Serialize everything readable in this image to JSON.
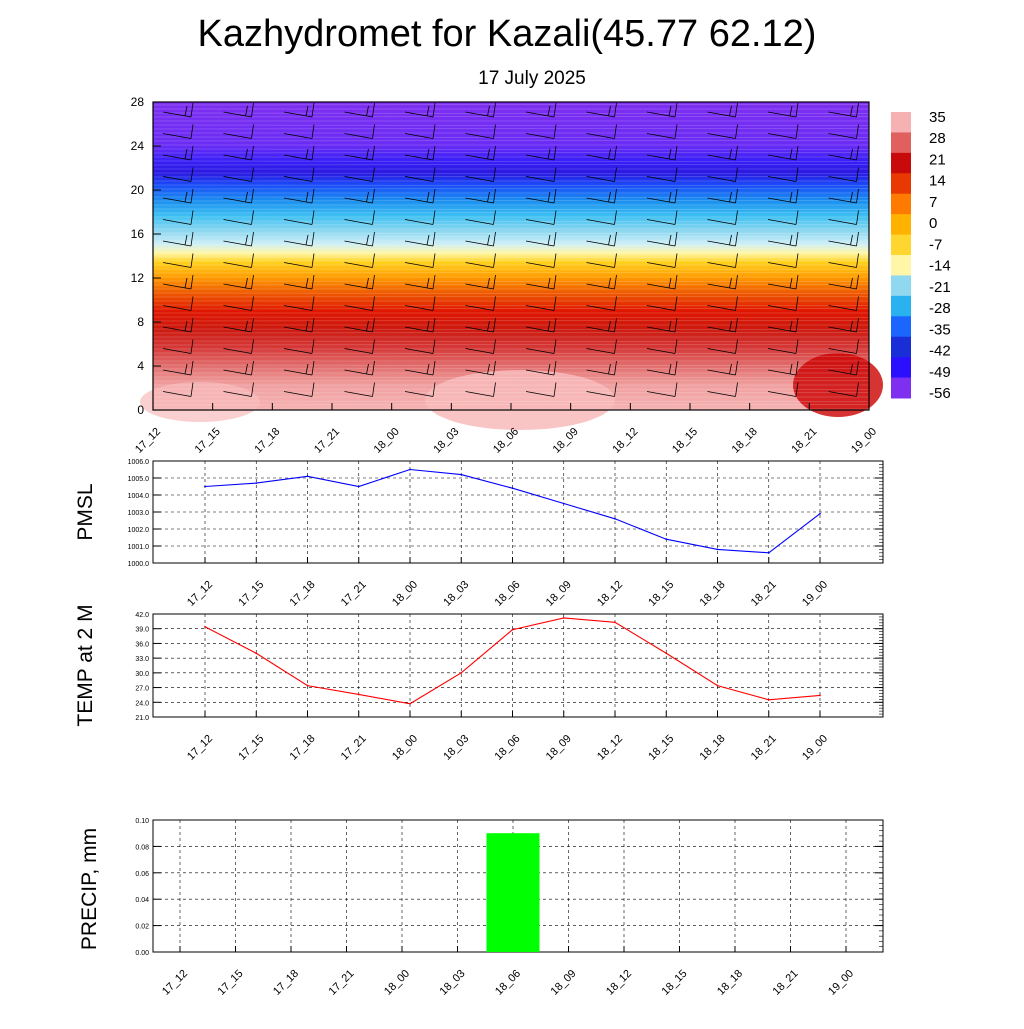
{
  "title": "Kazhydromet for Kazali(45.77 62.12)",
  "subtitle": "17 July 2025",
  "chart_data": [
    {
      "type": "heatmap",
      "x_ticks": [
        "17_12",
        "17_15",
        "17_18",
        "17_21",
        "18_00",
        "18_03",
        "18_06",
        "18_09",
        "18_12",
        "18_15",
        "18_18",
        "18_21",
        "19_00"
      ],
      "y_ticks": [
        "0",
        "4",
        "8",
        "12",
        "16",
        "20",
        "24",
        "28"
      ],
      "ylim": [
        0,
        28
      ],
      "colorbar_labels": [
        "35",
        "28",
        "21",
        "14",
        "7",
        "0",
        "-7",
        "-14",
        "-21",
        "-28",
        "-35",
        "-42",
        "-49",
        "-56"
      ],
      "colorbar_colors": [
        "#f6b2b2",
        "#e06060",
        "#c80a0a",
        "#e83a00",
        "#ff7a00",
        "#ffb300",
        "#ffd630",
        "#fff6a8",
        "#8fd8f0",
        "#2ab2f0",
        "#1a66ff",
        "#1a2ed8",
        "#2a10ff",
        "#7f2ff0"
      ],
      "overlay": "wind barbs"
    },
    {
      "type": "line",
      "ylabel": "PMSL",
      "color": "#0000ff",
      "ylim": [
        1000.0,
        1006.0
      ],
      "y_ticks": [
        "1000.0",
        "1001.0",
        "1002.0",
        "1003.0",
        "1004.0",
        "1005.0",
        "1006.0"
      ],
      "categories": [
        "17_12",
        "17_15",
        "17_18",
        "17_21",
        "18_00",
        "18_03",
        "18_06",
        "18_09",
        "18_12",
        "18_15",
        "18_18",
        "18_21",
        "19_00"
      ],
      "values": [
        1004.5,
        1004.7,
        1005.1,
        1004.5,
        1005.5,
        1005.2,
        1004.4,
        1003.5,
        1002.6,
        1001.4,
        1000.8,
        1000.6,
        1002.9
      ]
    },
    {
      "type": "line",
      "ylabel": "TEMP at 2 M",
      "color": "#ff0000",
      "ylim": [
        21.0,
        42.0
      ],
      "y_ticks": [
        "21.0",
        "24.0",
        "27.0",
        "30.0",
        "33.0",
        "36.0",
        "39.0",
        "42.0"
      ],
      "categories": [
        "17_12",
        "17_15",
        "17_18",
        "17_21",
        "18_00",
        "18_03",
        "18_06",
        "18_09",
        "18_12",
        "18_15",
        "18_18",
        "18_21",
        "19_00"
      ],
      "values": [
        39.4,
        34.0,
        27.4,
        25.6,
        23.7,
        30.0,
        38.8,
        41.2,
        40.3,
        34.0,
        27.4,
        24.5,
        25.4
      ]
    },
    {
      "type": "bar",
      "ylabel": "PRECIP, mm",
      "color": "#00ff00",
      "ylim": [
        0.0,
        0.1
      ],
      "y_ticks": [
        "0.00",
        "0.02",
        "0.04",
        "0.06",
        "0.08",
        "0.10"
      ],
      "categories": [
        "17_12",
        "17_15",
        "17_18",
        "17_21",
        "18_00",
        "18_03",
        "18_06",
        "18_09",
        "18_12",
        "18_15",
        "18_18",
        "18_21",
        "19_00"
      ],
      "values": [
        0,
        0,
        0,
        0,
        0,
        0,
        0.09,
        0,
        0,
        0,
        0,
        0,
        0
      ]
    }
  ]
}
